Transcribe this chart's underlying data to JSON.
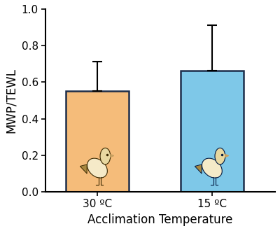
{
  "categories": [
    "30 ºC",
    "15 ºC"
  ],
  "values": [
    0.551,
    0.664
  ],
  "errors": [
    0.16,
    0.248
  ],
  "bar_colors": [
    "#F5BC7A",
    "#7EC8E8"
  ],
  "bar_edgecolor": "#1C2D4A",
  "bar_width": 0.55,
  "bar_positions": [
    1,
    2
  ],
  "ylim": [
    0,
    1.0
  ],
  "yticks": [
    0.0,
    0.2,
    0.4,
    0.6,
    0.8,
    1.0
  ],
  "ylabel": "MWP/TEWL",
  "xlabel": "Acclimation Temperature",
  "xlim": [
    0.55,
    2.55
  ],
  "xticks": [
    1,
    2
  ],
  "error_capsize": 5,
  "error_linewidth": 1.5,
  "edge_linewidth": 1.8,
  "axis_linewidth": 1.5,
  "ylabel_fontsize": 12,
  "xlabel_fontsize": 12,
  "tick_fontsize": 11
}
